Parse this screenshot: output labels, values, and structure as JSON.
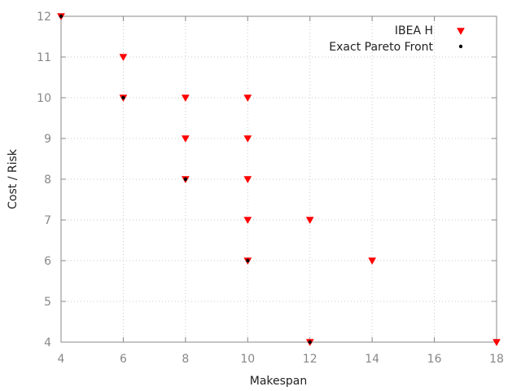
{
  "chart_data": {
    "type": "scatter",
    "xlabel": "Makespan",
    "ylabel": "Cost / Risk",
    "xlim": [
      4,
      18
    ],
    "ylim": [
      4,
      12
    ],
    "xticks": [
      4,
      6,
      8,
      10,
      12,
      14,
      16,
      18
    ],
    "yticks": [
      4,
      5,
      6,
      7,
      8,
      9,
      10,
      11,
      12
    ],
    "grid": true,
    "legend_position": "top-right",
    "series": [
      {
        "name": "IBEA H",
        "marker": "triangle-down",
        "color": "#ff0000",
        "points": [
          {
            "x": 4,
            "y": 12
          },
          {
            "x": 6,
            "y": 11
          },
          {
            "x": 6,
            "y": 10
          },
          {
            "x": 8,
            "y": 10
          },
          {
            "x": 8,
            "y": 9
          },
          {
            "x": 8,
            "y": 8
          },
          {
            "x": 10,
            "y": 10
          },
          {
            "x": 10,
            "y": 9
          },
          {
            "x": 10,
            "y": 8
          },
          {
            "x": 10,
            "y": 7
          },
          {
            "x": 10,
            "y": 6
          },
          {
            "x": 12,
            "y": 7
          },
          {
            "x": 12,
            "y": 4
          },
          {
            "x": 14,
            "y": 6
          },
          {
            "x": 18,
            "y": 4
          }
        ]
      },
      {
        "name": "Exact Pareto Front",
        "marker": "dot",
        "color": "#000000",
        "points": [
          {
            "x": 4,
            "y": 12
          },
          {
            "x": 6,
            "y": 10
          },
          {
            "x": 8,
            "y": 8
          },
          {
            "x": 10,
            "y": 6
          },
          {
            "x": 12,
            "y": 4
          }
        ]
      }
    ]
  }
}
